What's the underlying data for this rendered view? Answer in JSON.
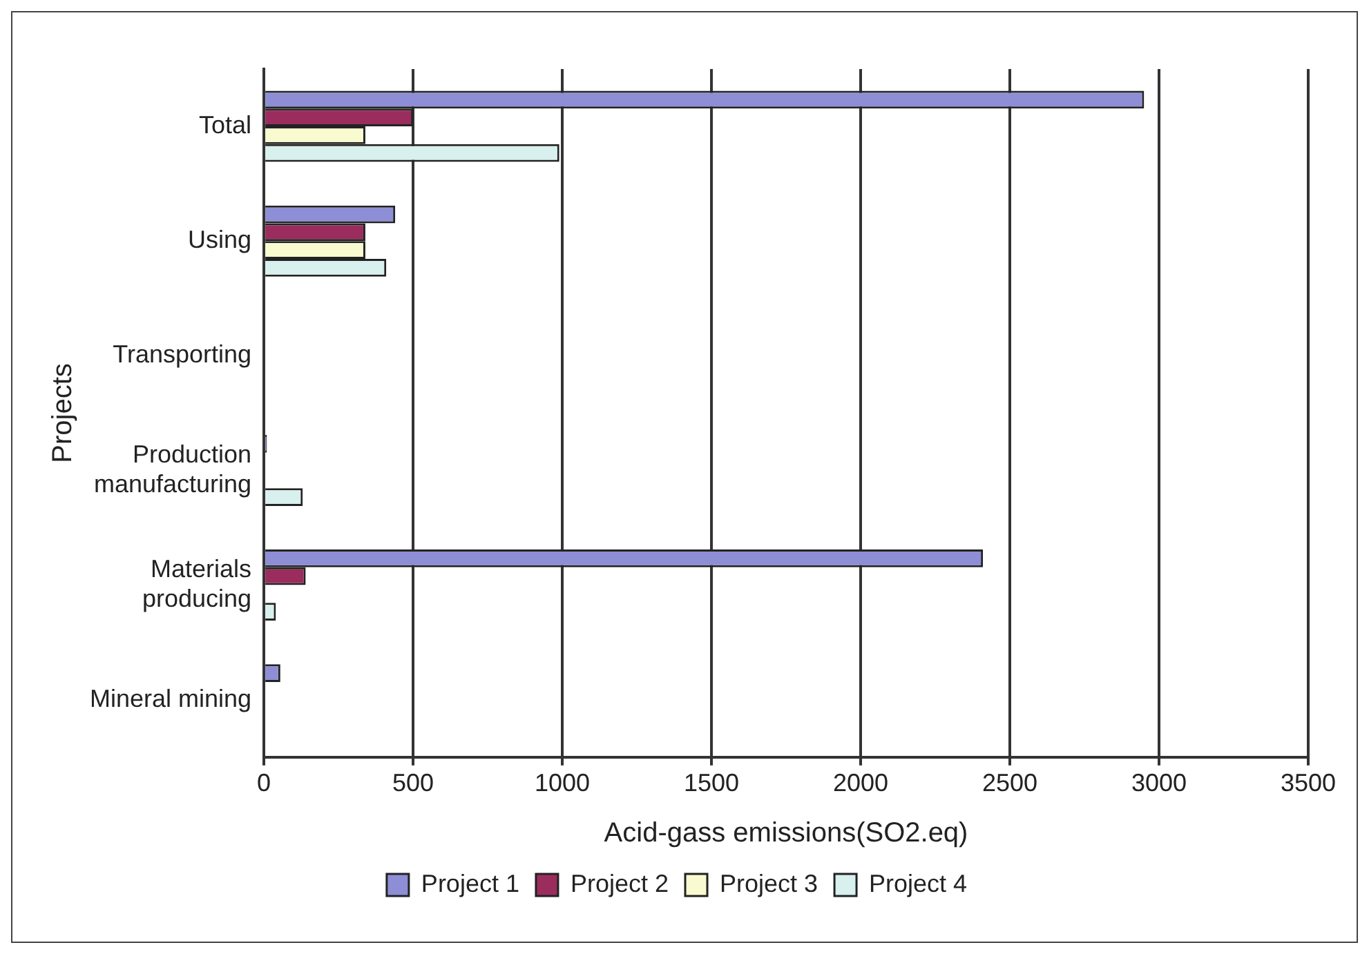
{
  "chart_data": {
    "type": "bar",
    "orientation": "horizontal",
    "xlabel": "Acid-gass emissions(SO2.eq)",
    "ylabel": "Projects",
    "categories": [
      "Total",
      "Using",
      "Transporting",
      "Production manufacturing",
      "Materials producing",
      "Mineral mining"
    ],
    "series": [
      {
        "name": "Project 1",
        "color": "#8e8ed6",
        "values": [
          2950,
          440,
          null,
          10,
          2410,
          55
        ]
      },
      {
        "name": "Project 2",
        "color": "#9b2c5e",
        "values": [
          500,
          340,
          null,
          null,
          140,
          null
        ]
      },
      {
        "name": "Project 3",
        "color": "#fafad0",
        "values": [
          340,
          340,
          null,
          null,
          null,
          null
        ]
      },
      {
        "name": "Project 4",
        "color": "#d8f0ee",
        "values": [
          990,
          410,
          null,
          130,
          40,
          null
        ]
      }
    ],
    "xlim": [
      0,
      3500
    ],
    "xticks": [
      0,
      500,
      1000,
      1500,
      2000,
      2500,
      3000,
      3500
    ],
    "grid": "x",
    "legend": "bottom"
  }
}
